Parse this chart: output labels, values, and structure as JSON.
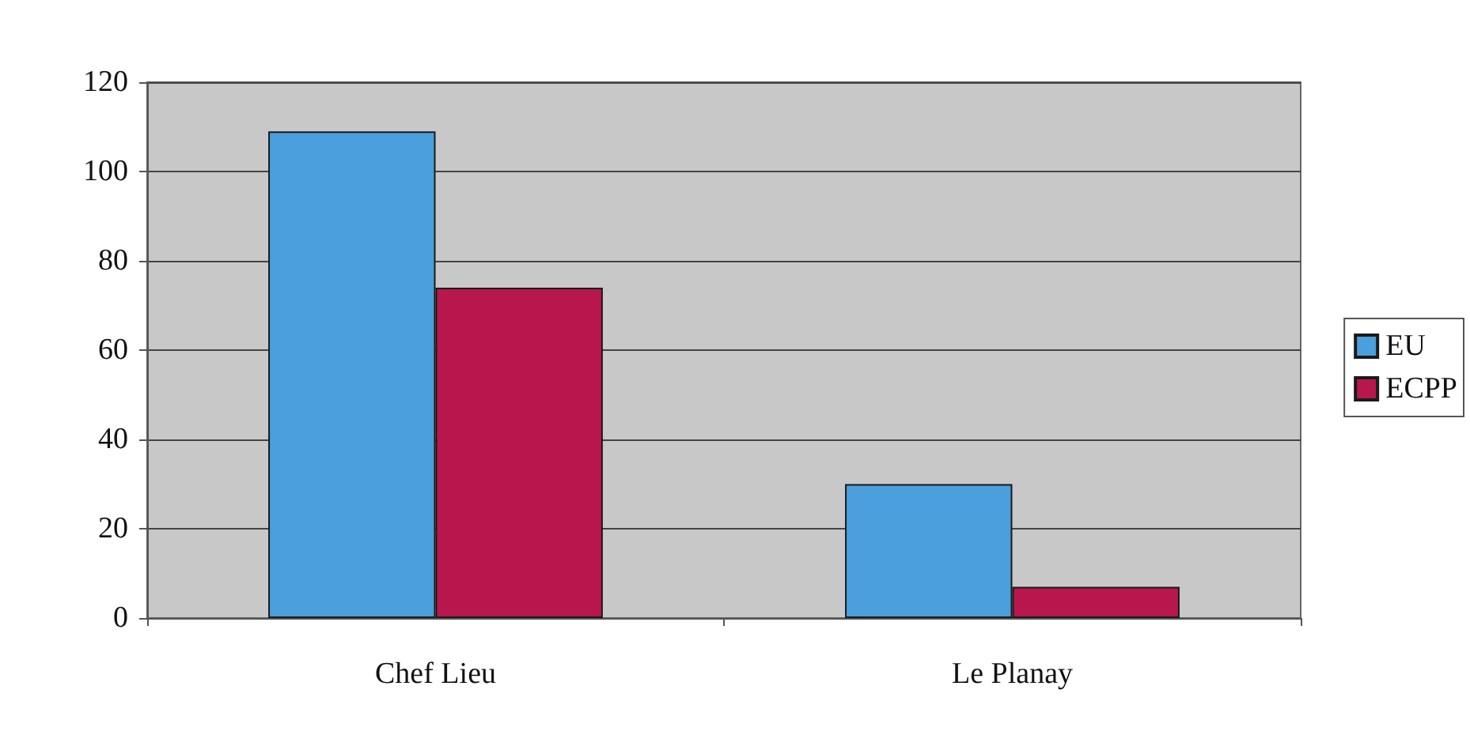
{
  "chart_data": {
    "type": "bar",
    "categories": [
      "Chef Lieu",
      "Le Planay"
    ],
    "series": [
      {
        "name": "EU",
        "color": "#4a9fdc",
        "values": [
          109,
          30
        ]
      },
      {
        "name": "ECPP",
        "color": "#b8174e",
        "values": [
          74,
          7
        ]
      }
    ],
    "ylim": [
      0,
      120
    ],
    "yticks": [
      0,
      20,
      40,
      60,
      80,
      100,
      120
    ],
    "grid": "y",
    "legend": "right"
  }
}
